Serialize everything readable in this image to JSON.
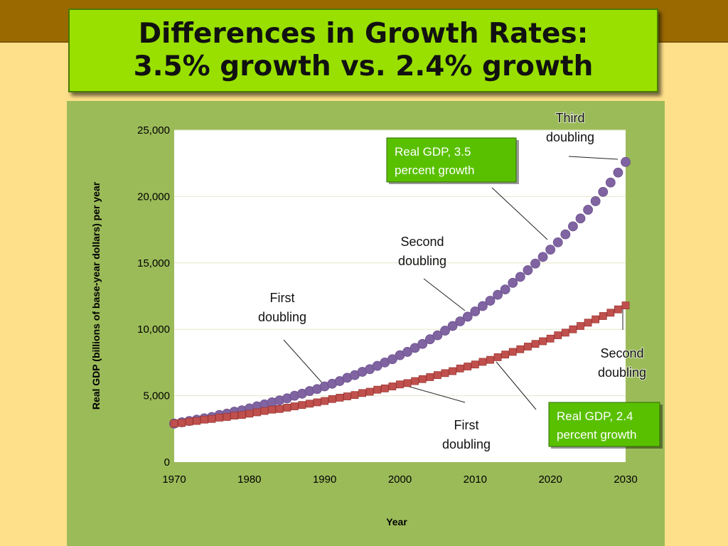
{
  "header": {
    "title_line1": "Differences in Growth Rates:",
    "title_line2": "3.5% growth vs. 2.4% growth"
  },
  "colors": {
    "series_35": "#8064a2",
    "series_24": "#c0504d",
    "plot_background": "#ffffff",
    "chart_background": "#9bbb59",
    "label_box": "#59c000"
  },
  "chart_data": {
    "type": "scatter",
    "title": "",
    "xlabel": "Year",
    "ylabel": "Real GDP (billions of base-year dollars) per year",
    "xlim": [
      1970,
      2030
    ],
    "ylim": [
      0,
      25000
    ],
    "grid": true,
    "x_ticks": [
      "1970",
      "1980",
      "1990",
      "2000",
      "2010",
      "2020",
      "2030"
    ],
    "y_ticks": [
      "0",
      "5,000",
      "10,000",
      "15,000",
      "20,000",
      "25,000"
    ],
    "series": [
      {
        "name": "Real GDP, 3.5 percent growth",
        "marker": "circle",
        "x": [
          1970,
          1971,
          1972,
          1973,
          1974,
          1975,
          1976,
          1977,
          1978,
          1979,
          1980,
          1981,
          1982,
          1983,
          1984,
          1985,
          1986,
          1987,
          1988,
          1989,
          1990,
          1991,
          1992,
          1993,
          1994,
          1995,
          1996,
          1997,
          1998,
          1999,
          2000,
          2001,
          2002,
          2003,
          2004,
          2005,
          2006,
          2007,
          2008,
          2009,
          2010,
          2011,
          2012,
          2013,
          2014,
          2015,
          2016,
          2017,
          2018,
          2019,
          2020,
          2021,
          2022,
          2023,
          2024,
          2025,
          2026,
          2027,
          2028,
          2029,
          2030
        ],
        "y": [
          2900,
          3000,
          3100,
          3200,
          3300,
          3400,
          3550,
          3650,
          3800,
          3900,
          4050,
          4200,
          4350,
          4500,
          4650,
          4800,
          5000,
          5150,
          5350,
          5500,
          5700,
          5900,
          6100,
          6350,
          6550,
          6800,
          7000,
          7250,
          7500,
          7750,
          8050,
          8300,
          8600,
          8900,
          9250,
          9550,
          9900,
          10250,
          10600,
          10950,
          11350,
          11750,
          12150,
          12600,
          13000,
          13500,
          13950,
          14450,
          14950,
          15450,
          16000,
          16550,
          17150,
          17750,
          18350,
          19000,
          19650,
          20350,
          21050,
          21800,
          22600
        ]
      },
      {
        "name": "Real GDP, 2.4 percent growth",
        "marker": "square",
        "x": [
          1970,
          1971,
          1972,
          1973,
          1974,
          1975,
          1976,
          1977,
          1978,
          1979,
          1980,
          1981,
          1982,
          1983,
          1984,
          1985,
          1986,
          1987,
          1988,
          1989,
          1990,
          1991,
          1992,
          1993,
          1994,
          1995,
          1996,
          1997,
          1998,
          1999,
          2000,
          2001,
          2002,
          2003,
          2004,
          2005,
          2006,
          2007,
          2008,
          2009,
          2010,
          2011,
          2012,
          2013,
          2014,
          2015,
          2016,
          2017,
          2018,
          2019,
          2020,
          2021,
          2022,
          2023,
          2024,
          2025,
          2026,
          2027,
          2028,
          2029,
          2030
        ],
        "y": [
          2900,
          2950,
          3050,
          3100,
          3200,
          3250,
          3350,
          3400,
          3500,
          3550,
          3650,
          3750,
          3850,
          3950,
          4000,
          4100,
          4200,
          4300,
          4400,
          4500,
          4600,
          4750,
          4850,
          4950,
          5050,
          5200,
          5300,
          5450,
          5550,
          5700,
          5850,
          5950,
          6100,
          6250,
          6400,
          6550,
          6700,
          6850,
          7050,
          7200,
          7350,
          7550,
          7700,
          7900,
          8100,
          8300,
          8500,
          8700,
          8900,
          9100,
          9300,
          9550,
          9750,
          10000,
          10250,
          10500,
          10750,
          11000,
          11250,
          11500,
          11800
        ]
      }
    ],
    "annotations": [
      {
        "lines": [
          "Third",
          "doubling"
        ],
        "pointer_x": 2029,
        "pointer_y": 22600
      },
      {
        "lines": [
          "Second",
          "doubling"
        ],
        "pointer_x": 2010,
        "pointer_y": 11400
      },
      {
        "lines": [
          "First",
          "doubling"
        ],
        "pointer_x": 1990,
        "pointer_y": 5700
      },
      {
        "lines": [
          "Second",
          "doubling"
        ],
        "pointer_x": 2030,
        "pointer_y": 11800
      },
      {
        "lines": [
          "First",
          "doubling"
        ],
        "pointer_x": 1999,
        "pointer_y": 5900
      }
    ],
    "series_labels": [
      {
        "lines": [
          "Real GDP, 3.5",
          "percent growth"
        ],
        "pointer_x": 2020,
        "pointer_y": 16600
      },
      {
        "lines": [
          "Real GDP, 2.4",
          "percent growth"
        ],
        "pointer_x": 2013,
        "pointer_y": 7600
      }
    ]
  }
}
